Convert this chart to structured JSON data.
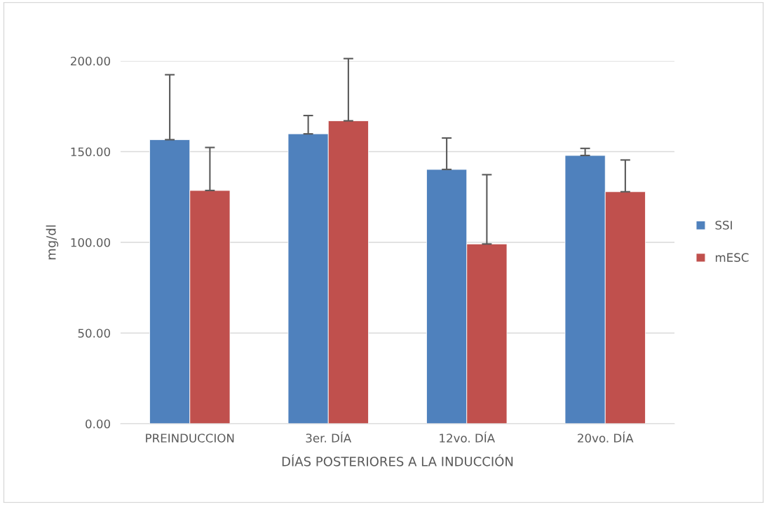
{
  "chart_data": {
    "type": "bar",
    "xlabel": "DÍAS POSTERIORES A LA INDUCCIÓN",
    "ylabel": "mg/dl",
    "categories": [
      "PREINDUCCION",
      "3er. DÍA",
      "12vo. DÍA",
      "20vo. DÍA"
    ],
    "series": [
      {
        "name": "SSI",
        "color": "#4f81bd",
        "values": [
          156.6,
          159.8,
          140.2,
          147.9
        ],
        "errors": [
          [
            156.6,
            192.4
          ],
          [
            159.8,
            169.9
          ],
          [
            140.2,
            157.5
          ],
          [
            147.9,
            151.8
          ]
        ]
      },
      {
        "name": "mESC",
        "color": "#c0504d",
        "values": [
          128.6,
          167.0,
          99.1,
          127.9
        ],
        "errors": [
          [
            128.6,
            152.3
          ],
          [
            167.0,
            201.3
          ],
          [
            99.1,
            137.3
          ],
          [
            127.9,
            145.4
          ]
        ]
      }
    ],
    "ylim": [
      0,
      200
    ],
    "yticks": [
      {
        "value": 0,
        "label": "0.00"
      },
      {
        "value": 50,
        "label": "50.00"
      },
      {
        "value": 100,
        "label": "100.00"
      },
      {
        "value": 150,
        "label": "150.00"
      },
      {
        "value": 200,
        "label": "200.00"
      }
    ],
    "grid": "y",
    "legend": "right"
  }
}
